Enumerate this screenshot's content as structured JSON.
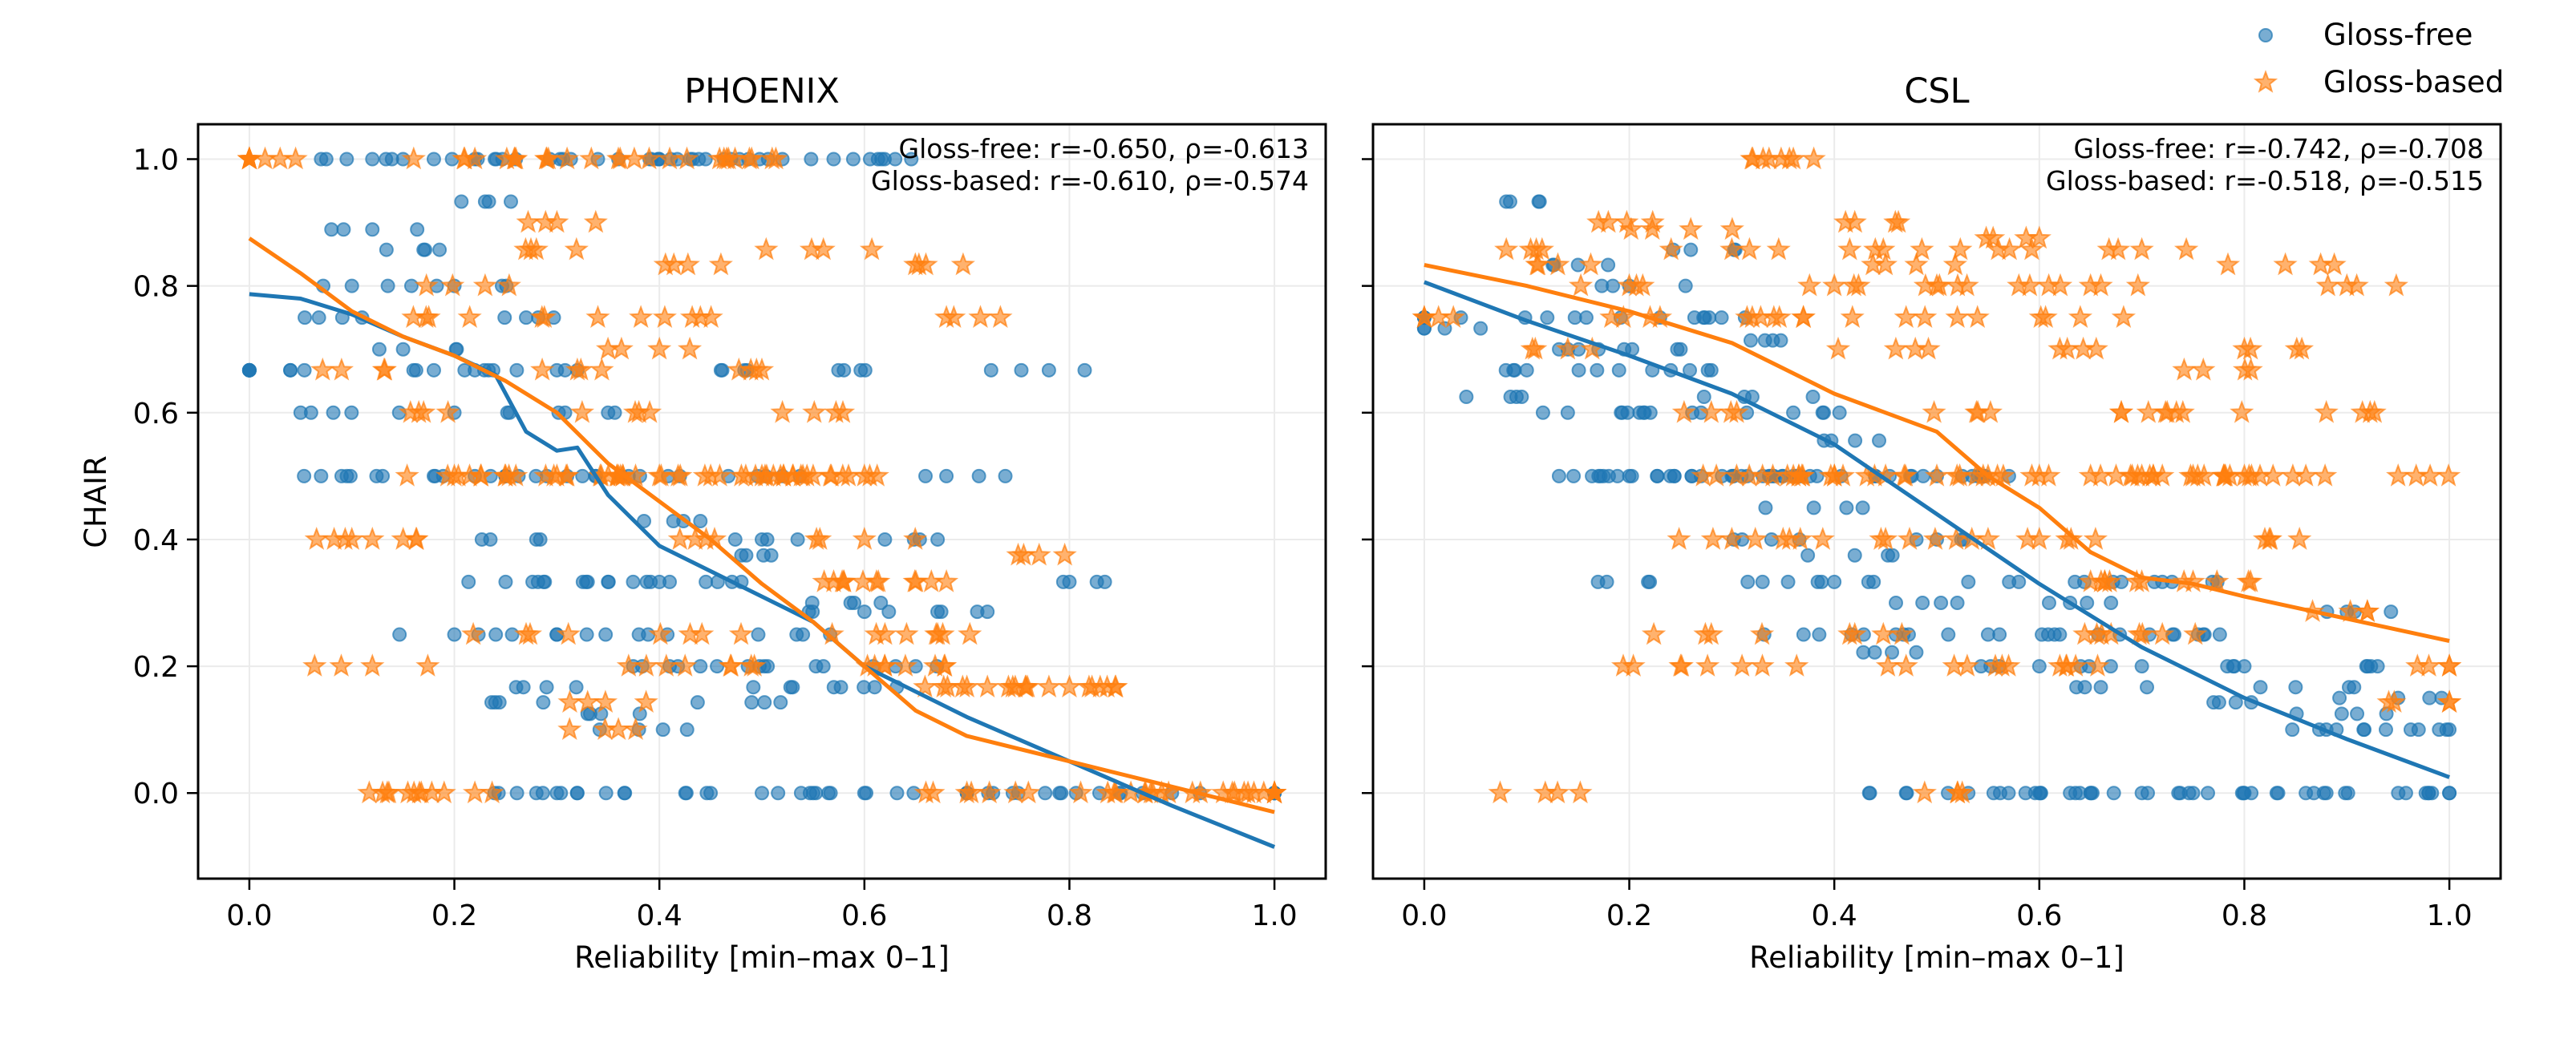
{
  "legend": {
    "position": "top-right",
    "items": [
      {
        "label": "Gloss-free",
        "marker": "circle",
        "color": "#1f77b4"
      },
      {
        "label": "Gloss-based",
        "marker": "star",
        "color": "#ff7f0e"
      }
    ]
  },
  "chart_data": [
    {
      "type": "scatter",
      "title": "PHOENIX",
      "xlabel": "Reliability [min–max 0–1]",
      "ylabel": "CHAIR",
      "xlim": [
        -0.05,
        1.05
      ],
      "ylim": [
        -0.135,
        1.055
      ],
      "xticks": [
        "0.0",
        "0.2",
        "0.4",
        "0.6",
        "0.8",
        "1.0"
      ],
      "yticks": [
        "0.0",
        "0.2",
        "0.4",
        "0.6",
        "0.8",
        "1.0"
      ],
      "grid": true,
      "annotation": [
        "Gloss-free: r=-0.650, ρ=-0.613",
        "Gloss-based: r=-0.610, ρ=-0.574"
      ],
      "series": [
        {
          "name": "Gloss-free",
          "marker": "circle",
          "color": "#1f77b4",
          "trend": {
            "x": [
              0.0,
              0.05,
              0.1,
              0.15,
              0.2,
              0.24,
              0.27,
              0.3,
              0.32,
              0.35,
              0.4,
              0.45,
              0.5,
              0.55,
              0.6,
              0.7,
              0.8,
              0.9,
              1.0
            ],
            "y": [
              0.787,
              0.78,
              0.755,
              0.72,
              0.69,
              0.66,
              0.57,
              0.54,
              0.545,
              0.47,
              0.39,
              0.35,
              0.31,
              0.27,
              0.2,
              0.12,
              0.05,
              -0.02,
              -0.085
            ]
          },
          "points": {
            "x": [
              0.0,
              0.04,
              0.05,
              0.09,
              0.1,
              0.11,
              0.12,
              0.13,
              0.15,
              0.17,
              0.18,
              0.2,
              0.2,
              0.21,
              0.22,
              0.23,
              0.25,
              0.27,
              0.28,
              0.3,
              0.31,
              0.33,
              0.35,
              0.37,
              0.38,
              0.4,
              0.42,
              0.44,
              0.46,
              0.48,
              0.5,
              0.52,
              0.54,
              0.56,
              0.58,
              0.6,
              0.62,
              0.65,
              0.68,
              0.72,
              0.78,
              0.8,
              0.28,
              0.3,
              0.32,
              0.45,
              0.5,
              0.55,
              0.6,
              0.7,
              0.75,
              0.85,
              0.9,
              1.0,
              0.12,
              0.18,
              0.22,
              0.26,
              0.34,
              0.36,
              0.4,
              0.43,
              0.47,
              0.52,
              0.57,
              0.63,
              0.24,
              0.29,
              0.33,
              0.38,
              0.41,
              0.49,
              0.53,
              0.2,
              0.25,
              0.3,
              0.35,
              0.44,
              0.48,
              0.59,
              0.61
            ],
            "y": [
              0.667,
              0.667,
              0.6,
              0.5,
              0.8,
              0.75,
              0.889,
              0.5,
              0.7,
              0.857,
              0.667,
              0.6,
              0.8,
              0.667,
              0.5,
              0.933,
              0.5,
              0.75,
              0.4,
              0.667,
              0.5,
              0.333,
              0.6,
              0.5,
              0.25,
              0.333,
              0.5,
              0.2,
              0.667,
              0.333,
              0.4,
              0.5,
              0.25,
              0.2,
              0.667,
              0.286,
              0.4,
              0.2,
              0.5,
              0.286,
              0.667,
              0.333,
              0.0,
              0.0,
              0.0,
              0.0,
              0.0,
              0.0,
              0.0,
              0.0,
              0.0,
              0.0,
              0.0,
              0.0,
              1.0,
              1.0,
              1.0,
              1.0,
              1.0,
              1.0,
              1.0,
              1.0,
              1.0,
              1.0,
              1.0,
              1.0,
              0.143,
              0.167,
              0.125,
              0.1,
              0.2,
              0.143,
              0.167,
              0.25,
              0.333,
              0.25,
              0.333,
              0.429,
              0.375,
              0.3,
              0.167
            ]
          }
        },
        {
          "name": "Gloss-based",
          "marker": "star",
          "color": "#ff7f0e",
          "trend": {
            "x": [
              0.0,
              0.05,
              0.1,
              0.15,
              0.2,
              0.25,
              0.3,
              0.35,
              0.4,
              0.45,
              0.5,
              0.55,
              0.6,
              0.65,
              0.7,
              0.8,
              0.9,
              1.0
            ],
            "y": [
              0.875,
              0.82,
              0.76,
              0.72,
              0.69,
              0.65,
              0.6,
              0.52,
              0.46,
              0.4,
              0.33,
              0.27,
              0.2,
              0.13,
              0.09,
              0.05,
              0.01,
              -0.03
            ]
          },
          "points": {
            "x": [
              0.0,
              0.03,
              0.09,
              0.12,
              0.13,
              0.16,
              0.19,
              0.22,
              0.23,
              0.26,
              0.28,
              0.3,
              0.32,
              0.34,
              0.36,
              0.38,
              0.4,
              0.42,
              0.44,
              0.46,
              0.48,
              0.5,
              0.52,
              0.54,
              0.56,
              0.58,
              0.6,
              0.62,
              0.64,
              0.66,
              0.68,
              0.7,
              0.72,
              0.75,
              0.78,
              0.8,
              0.83,
              0.86,
              0.89,
              0.92,
              0.95,
              0.98,
              1.0,
              0.2,
              0.25,
              0.3,
              0.35,
              0.4,
              0.45,
              0.5,
              0.53,
              0.55,
              0.6,
              0.67,
              0.7,
              0.76,
              0.68,
              0.62,
              0.57,
              0.47,
              0.43,
              0.37,
              0.33,
              0.27,
              0.17,
              0.12,
              0.1,
              0.31,
              0.39,
              0.41,
              0.49,
              0.51,
              0.26,
              0.22,
              0.36
            ],
            "y": [
              1.0,
              1.0,
              0.667,
              0.2,
              0.0,
              0.75,
              0.0,
              0.0,
              0.8,
              0.5,
              0.857,
              0.9,
              0.667,
              0.75,
              0.5,
              0.6,
              0.7,
              0.4,
              0.75,
              0.833,
              0.5,
              0.667,
              0.6,
              0.5,
              0.857,
              0.333,
              0.4,
              0.25,
              0.2,
              0.833,
              0.75,
              0.167,
              0.167,
              0.375,
              0.167,
              0.167,
              0.167,
              0.0,
              0.0,
              0.0,
              0.0,
              0.0,
              0.0,
              0.5,
              0.5,
              0.5,
              0.5,
              0.5,
              0.5,
              0.5,
              0.5,
              0.5,
              0.5,
              0.25,
              0.0,
              0.0,
              0.333,
              0.2,
              0.333,
              0.2,
              0.25,
              0.2,
              0.143,
              0.25,
              0.6,
              0.4,
              0.4,
              1.0,
              1.0,
              1.0,
              1.0,
              1.0,
              1.0,
              1.0,
              0.1
            ]
          }
        }
      ]
    },
    {
      "type": "scatter",
      "title": "CSL",
      "xlabel": "Reliability [min–max 0–1]",
      "ylabel": "",
      "xlim": [
        -0.05,
        1.05
      ],
      "ylim": [
        -0.135,
        1.055
      ],
      "xticks": [
        "0.0",
        "0.2",
        "0.4",
        "0.6",
        "0.8",
        "1.0"
      ],
      "yticks": [
        "",
        "",
        "",
        "",
        "",
        ""
      ],
      "grid": true,
      "annotation": [
        "Gloss-free: r=-0.742, ρ=-0.708",
        "Gloss-based: r=-0.518, ρ=-0.515"
      ],
      "series": [
        {
          "name": "Gloss-free",
          "marker": "circle",
          "color": "#1f77b4",
          "trend": {
            "x": [
              0.0,
              0.1,
              0.2,
              0.3,
              0.4,
              0.5,
              0.6,
              0.7,
              0.8,
              0.9,
              1.0
            ],
            "y": [
              0.806,
              0.745,
              0.69,
              0.63,
              0.55,
              0.44,
              0.33,
              0.23,
              0.15,
              0.085,
              0.025
            ]
          },
          "points": {
            "x": [
              0.0,
              0.02,
              0.08,
              0.09,
              0.1,
              0.12,
              0.14,
              0.15,
              0.17,
              0.18,
              0.19,
              0.2,
              0.21,
              0.22,
              0.23,
              0.24,
              0.25,
              0.26,
              0.27,
              0.28,
              0.29,
              0.3,
              0.31,
              0.32,
              0.33,
              0.34,
              0.35,
              0.36,
              0.37,
              0.38,
              0.39,
              0.4,
              0.42,
              0.44,
              0.46,
              0.48,
              0.5,
              0.52,
              0.55,
              0.58,
              0.6,
              0.63,
              0.66,
              0.7,
              0.73,
              0.77,
              0.8,
              0.85,
              0.88,
              0.91,
              0.95,
              0.99,
              1.0,
              0.47,
              0.57,
              0.6,
              0.63,
              0.65,
              0.7,
              0.75,
              0.8,
              0.86,
              0.88,
              0.98,
              0.17,
              0.2,
              0.27,
              0.34,
              0.36,
              0.44,
              0.5,
              0.54,
              0.62,
              0.68,
              0.72,
              0.76,
              0.9,
              0.93,
              0.97
            ],
            "y": [
              0.75,
              0.733,
              0.933,
              0.625,
              0.667,
              0.75,
              0.6,
              0.833,
              0.7,
              0.5,
              0.667,
              0.8,
              0.6,
              0.333,
              0.75,
              0.5,
              0.7,
              0.857,
              0.6,
              0.667,
              0.75,
              0.5,
              0.4,
              0.625,
              0.333,
              0.714,
              0.5,
              0.6,
              0.25,
              0.45,
              0.556,
              0.333,
              0.375,
              0.5,
              0.25,
              0.222,
              0.4,
              0.3,
              0.25,
              0.333,
              0.2,
              0.3,
              0.167,
              0.2,
              0.25,
              0.143,
              0.2,
              0.167,
              0.1,
              0.125,
              0.15,
              0.1,
              0.0,
              0.0,
              0.0,
              0.0,
              0.0,
              0.0,
              0.0,
              0.0,
              0.0,
              0.0,
              0.0,
              0.0,
              0.5,
              0.5,
              0.5,
              0.5,
              0.5,
              0.5,
              0.5,
              0.5,
              0.25,
              0.333,
              0.333,
              0.25,
              0.286,
              0.2,
              0.1
            ]
          }
        },
        {
          "name": "Gloss-based",
          "marker": "star",
          "color": "#ff7f0e",
          "trend": {
            "x": [
              0.0,
              0.1,
              0.2,
              0.3,
              0.35,
              0.4,
              0.45,
              0.5,
              0.55,
              0.6,
              0.65,
              0.7,
              0.75,
              0.8,
              0.9,
              1.0
            ],
            "y": [
              0.833,
              0.8,
              0.76,
              0.71,
              0.67,
              0.63,
              0.6,
              0.57,
              0.5,
              0.45,
              0.38,
              0.34,
              0.33,
              0.31,
              0.275,
              0.24
            ]
          },
          "points": {
            "x": [
              0.0,
              0.08,
              0.11,
              0.14,
              0.17,
              0.2,
              0.23,
              0.26,
              0.28,
              0.3,
              0.32,
              0.34,
              0.36,
              0.37,
              0.38,
              0.4,
              0.42,
              0.44,
              0.46,
              0.48,
              0.5,
              0.52,
              0.54,
              0.56,
              0.58,
              0.6,
              0.62,
              0.64,
              0.66,
              0.68,
              0.7,
              0.72,
              0.74,
              0.76,
              0.78,
              0.8,
              0.82,
              0.84,
              0.86,
              0.88,
              0.9,
              0.92,
              0.95,
              0.98,
              1.0,
              0.13,
              0.52,
              0.33,
              0.36,
              0.4,
              0.45,
              0.5,
              0.55,
              0.6,
              0.65,
              0.7,
              0.75,
              0.8,
              0.3,
              0.35,
              0.45,
              0.55,
              0.6,
              0.65,
              0.7,
              0.75,
              0.25,
              0.28,
              0.31,
              0.42,
              0.47,
              0.57,
              0.62,
              0.67,
              0.72
            ],
            "y": [
              0.75,
              0.857,
              0.833,
              0.7,
              0.9,
              0.8,
              0.75,
              0.889,
              0.6,
              0.857,
              0.75,
              0.5,
              1.0,
              0.75,
              1.0,
              0.8,
              0.9,
              0.857,
              0.7,
              0.833,
              0.8,
              0.75,
              0.6,
              0.857,
              0.8,
              0.875,
              0.7,
              0.75,
              0.8,
              0.6,
              0.857,
              0.5,
              0.6,
              0.667,
              0.5,
              0.7,
              0.4,
              0.833,
              0.5,
              0.6,
              0.8,
              0.286,
              0.5,
              0.2,
              0.143,
              0.0,
              0.0,
              0.5,
              0.5,
              0.5,
              0.5,
              0.5,
              0.5,
              0.5,
              0.5,
              0.5,
              0.5,
              0.5,
              0.4,
              0.4,
              0.4,
              0.4,
              0.4,
              0.333,
              0.333,
              0.333,
              0.2,
              0.25,
              0.2,
              0.25,
              0.2,
              0.2,
              0.2,
              0.25,
              0.25
            ]
          }
        }
      ]
    }
  ]
}
